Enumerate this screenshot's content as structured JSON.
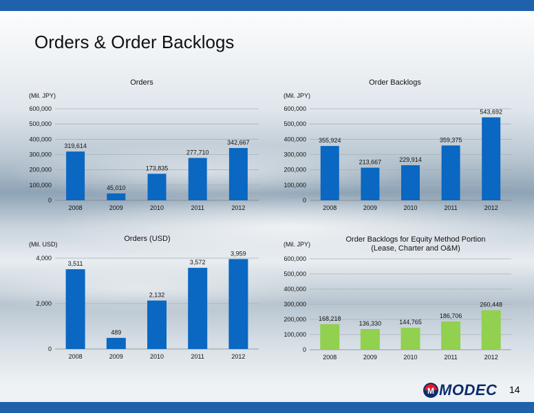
{
  "title": "Orders & Order Backlogs",
  "page_number": "14",
  "logo": {
    "text": "MODEC",
    "mark_letter": "M"
  },
  "colors": {
    "bar_blue": "#0a67c2",
    "bar_green": "#92d050",
    "band": "#1f62ab"
  },
  "chart_data": [
    {
      "id": "orders",
      "type": "bar",
      "title": "Orders",
      "unit_label": "(Mil. JPY)",
      "categories": [
        "2008",
        "2009",
        "2010",
        "2011",
        "2012"
      ],
      "values": [
        319614,
        45010,
        173835,
        277710,
        342667
      ],
      "value_labels": [
        "319,614",
        "45,010",
        "173,835",
        "277,710",
        "342,667"
      ],
      "ylim": [
        0,
        600000
      ],
      "yticks": [
        0,
        100000,
        200000,
        300000,
        400000,
        500000,
        600000
      ],
      "ytick_labels": [
        "0",
        "100,000",
        "200,000",
        "300,000",
        "400,000",
        "500,000",
        "600,000"
      ],
      "grid": true,
      "color": "#0a67c2"
    },
    {
      "id": "backlogs",
      "type": "bar",
      "title": "Order Backlogs",
      "unit_label": "(Mil. JPY)",
      "categories": [
        "2008",
        "2009",
        "2010",
        "2011",
        "2012"
      ],
      "values": [
        355924,
        213667,
        229914,
        359375,
        543692
      ],
      "value_labels": [
        "355,924",
        "213,667",
        "229,914",
        "359,375",
        "543,692"
      ],
      "ylim": [
        0,
        600000
      ],
      "yticks": [
        0,
        100000,
        200000,
        300000,
        400000,
        500000,
        600000
      ],
      "ytick_labels": [
        "0",
        "100,000",
        "200,000",
        "300,000",
        "400,000",
        "500,000",
        "600,000"
      ],
      "grid": true,
      "color": "#0a67c2"
    },
    {
      "id": "orders_usd",
      "type": "bar",
      "title": "Orders (USD)",
      "unit_label": "(Mil. USD)",
      "categories": [
        "2008",
        "2009",
        "2010",
        "2011",
        "2012"
      ],
      "values": [
        3511,
        489,
        2132,
        3572,
        3959
      ],
      "value_labels": [
        "3,511",
        "489",
        "2,132",
        "3,572",
        "3,959"
      ],
      "ylim": [
        0,
        4000
      ],
      "yticks": [
        0,
        2000,
        4000
      ],
      "ytick_labels": [
        "0",
        "2,000",
        "4,000"
      ],
      "grid": true,
      "color": "#0a67c2"
    },
    {
      "id": "equity_backlogs",
      "type": "bar",
      "title": "Order Backlogs for Equity Method Portion",
      "title_line2": "(Lease, Charter and O&M)",
      "unit_label": "(Mil. JPY)",
      "categories": [
        "2008",
        "2009",
        "2010",
        "2011",
        "2012"
      ],
      "values": [
        168218,
        136330,
        144765,
        186706,
        260448
      ],
      "value_labels": [
        "168,218",
        "136,330",
        "144,765",
        "186,706",
        "260,448"
      ],
      "ylim": [
        0,
        600000
      ],
      "yticks": [
        0,
        100000,
        200000,
        300000,
        400000,
        500000,
        600000
      ],
      "ytick_labels": [
        "0",
        "100,000",
        "200,000",
        "300,000",
        "400,000",
        "500,000",
        "600,000"
      ],
      "grid": true,
      "color": "#92d050"
    }
  ]
}
